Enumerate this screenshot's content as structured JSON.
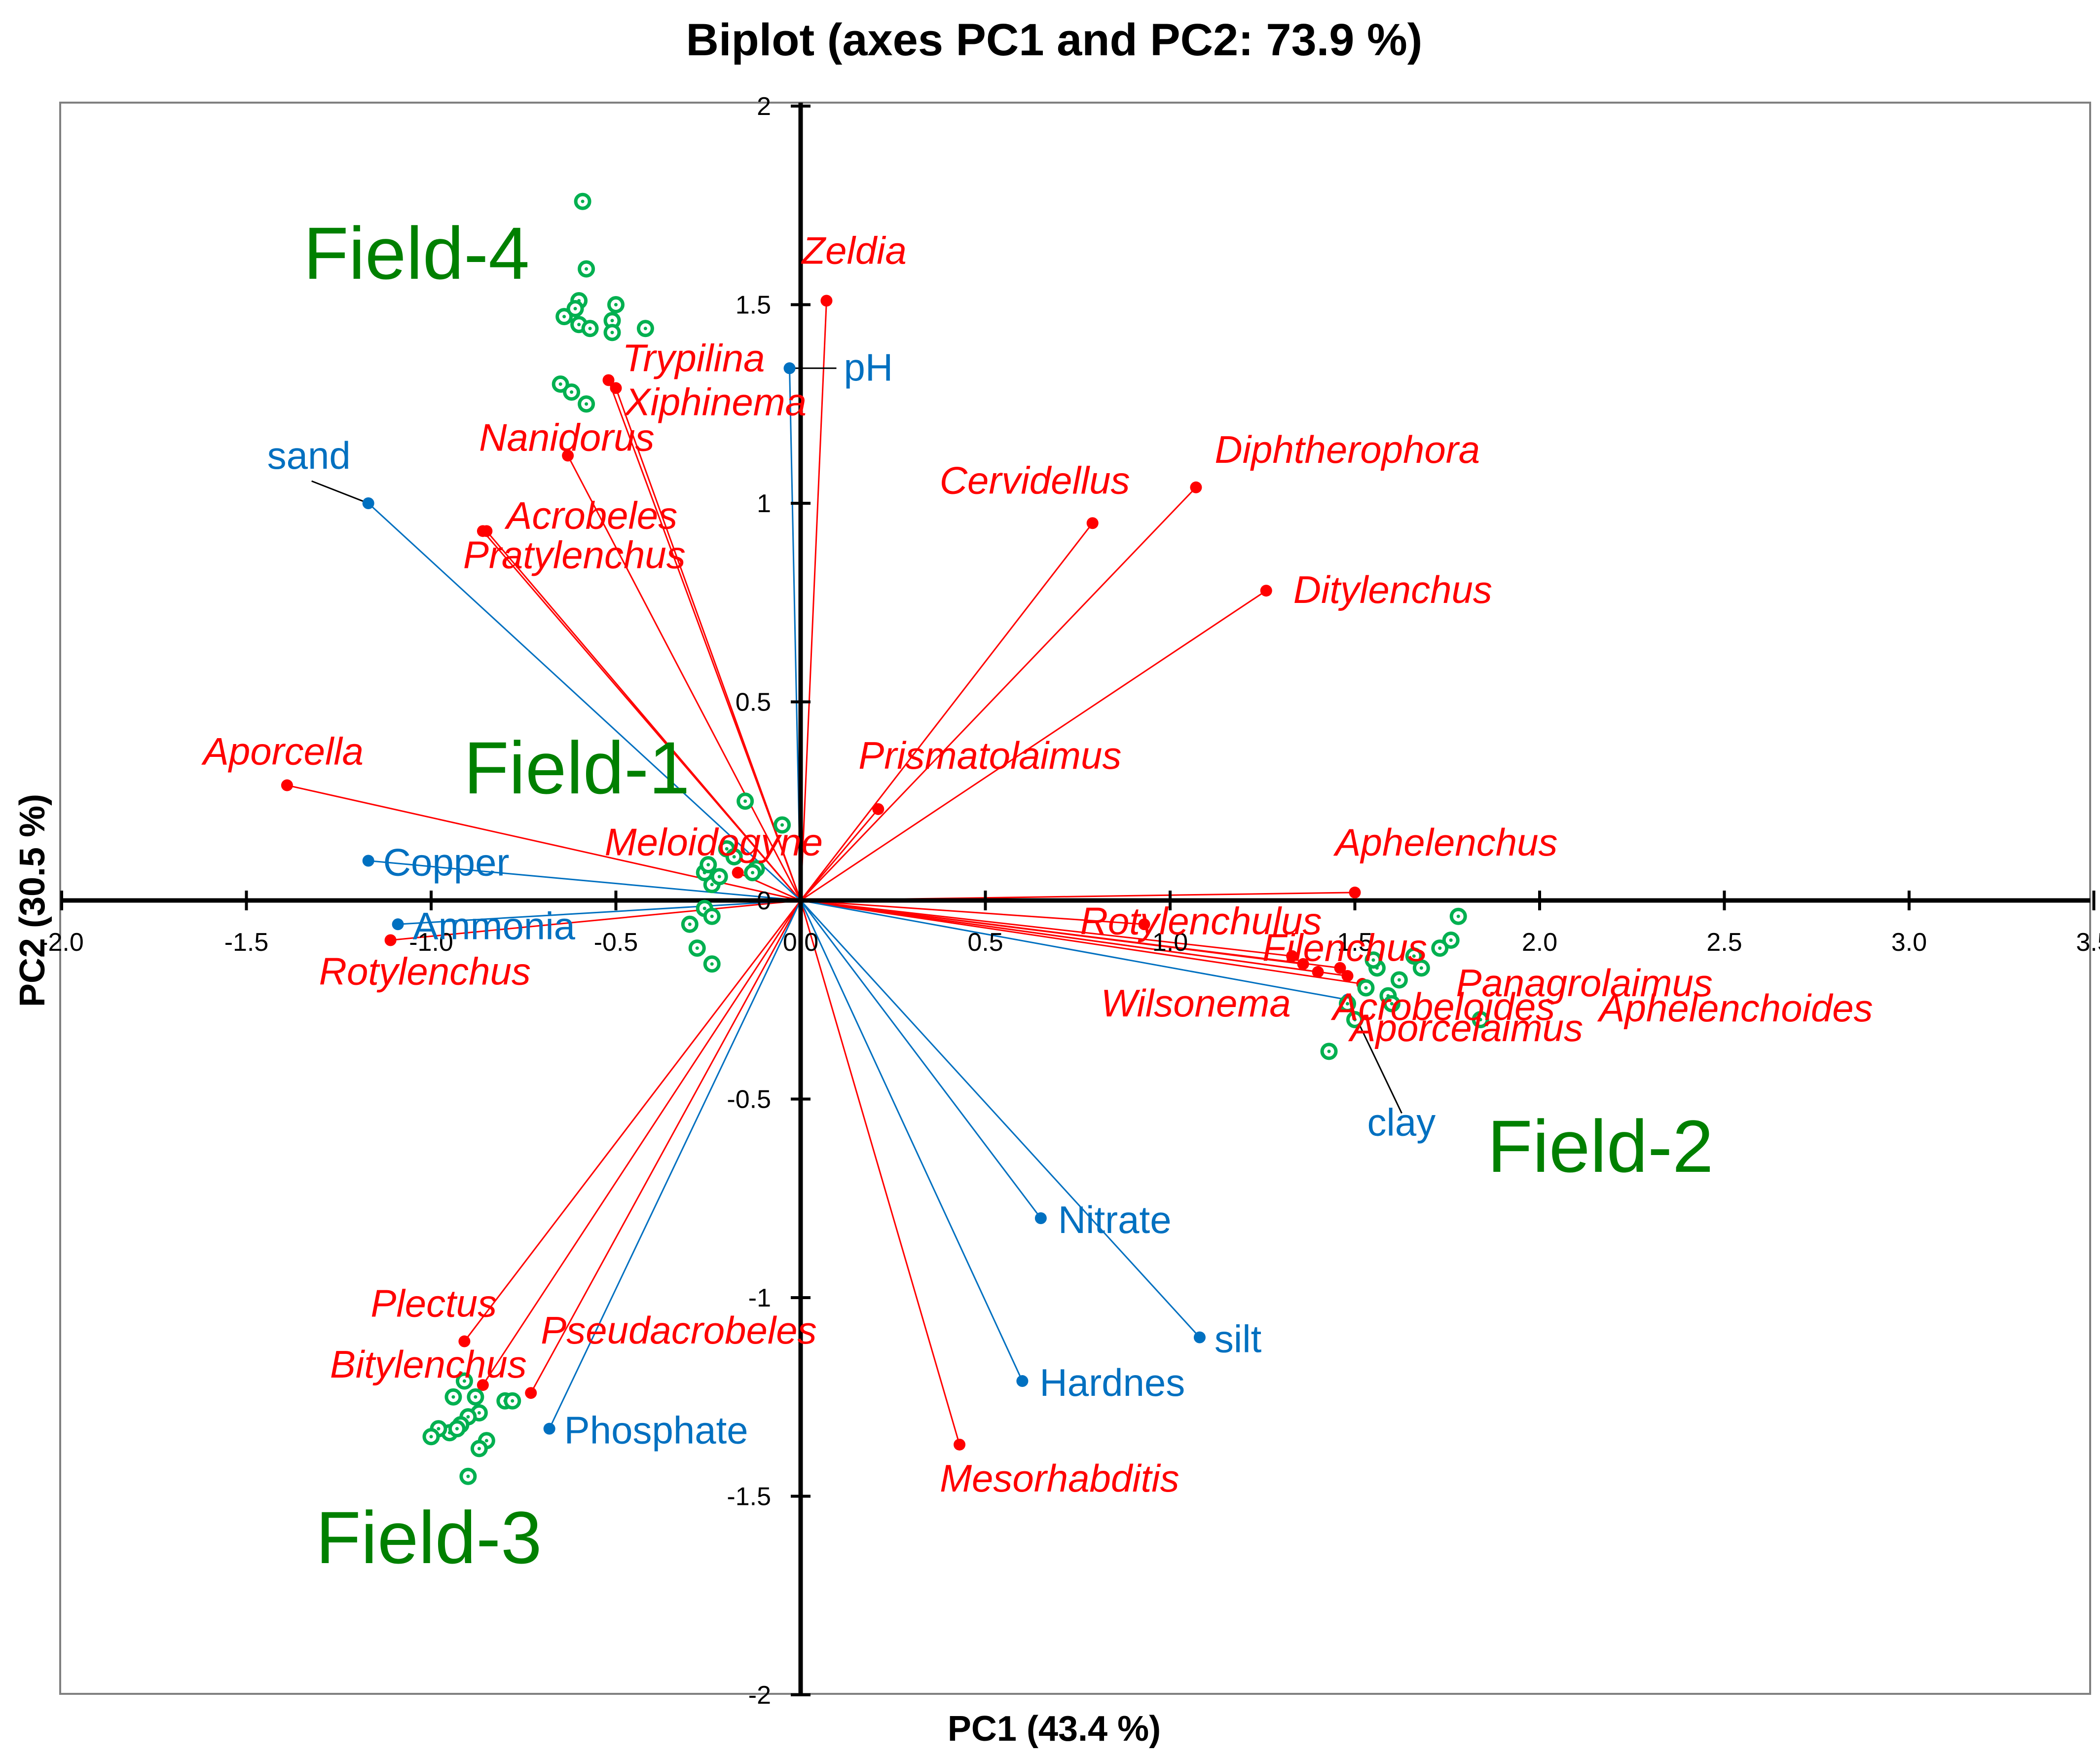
{
  "chart_data": {
    "type": "scatter",
    "title": "Biplot (axes PC1 and PC2: 73.9 %)",
    "xlabel": "PC1 (43.4 %)",
    "ylabel": "PC2 (30.5 %)",
    "xlim": [
      -2.0,
      3.5
    ],
    "ylim": [
      -2.0,
      2.0
    ],
    "x_ticks": [
      "-2.0",
      "-1.5",
      "-1.0",
      "-0.5",
      "0.0",
      "0.5",
      "1.0",
      "1.5",
      "2.0",
      "2.5",
      "3.0",
      "3.5"
    ],
    "y_ticks": [
      "-2",
      "-1.5",
      "-1",
      "-0.5",
      "0",
      "0.5",
      "1",
      "1.5",
      "2"
    ],
    "grid": false,
    "colors": {
      "species": "#ff0000",
      "environment": "#0070c0",
      "sites": "#00b050",
      "field": "#008000"
    },
    "species_vectors": [
      {
        "name": "Zeldia",
        "x": 0.07,
        "y": 1.51
      },
      {
        "name": "Trypilina",
        "x": -0.52,
        "y": 1.31
      },
      {
        "name": "Xiphinema",
        "x": -0.5,
        "y": 1.29
      },
      {
        "name": "Nanidorus",
        "x": -0.63,
        "y": 1.12
      },
      {
        "name": "Acrobeles",
        "x": -0.85,
        "y": 0.93
      },
      {
        "name": "Pratylenchus",
        "x": -0.86,
        "y": 0.93
      },
      {
        "name": "Cervidellus",
        "x": 0.79,
        "y": 0.95
      },
      {
        "name": "Diphtherophora",
        "x": 1.07,
        "y": 1.04
      },
      {
        "name": "Ditylenchus",
        "x": 1.26,
        "y": 0.78
      },
      {
        "name": "Prismatolaimus",
        "x": 0.21,
        "y": 0.23
      },
      {
        "name": "Aporcella",
        "x": -1.39,
        "y": 0.29
      },
      {
        "name": "Meloidogyne",
        "x": -0.17,
        "y": 0.07
      },
      {
        "name": "Aphelenchus",
        "x": 1.5,
        "y": 0.02
      },
      {
        "name": "Rotylenchulus",
        "x": 0.93,
        "y": -0.06
      },
      {
        "name": "Filenchus",
        "x": 1.33,
        "y": -0.14
      },
      {
        "name": "Panagrolaimus",
        "x": 1.46,
        "y": -0.17
      },
      {
        "name": "Acrobeloides",
        "x": 1.52,
        "y": -0.21
      },
      {
        "name": "Aphelenchoides",
        "x": 1.48,
        "y": -0.19
      },
      {
        "name": "Wilsonema",
        "x": 1.36,
        "y": -0.16
      },
      {
        "name": "Aporcelaimus",
        "x": 1.4,
        "y": -0.18
      },
      {
        "name": "Rotylenchus",
        "x": -1.11,
        "y": -0.1
      },
      {
        "name": "Plectus",
        "x": -0.91,
        "y": -1.11
      },
      {
        "name": "Bitylenchus",
        "x": -0.86,
        "y": -1.22
      },
      {
        "name": "Pseudacrobeles",
        "x": -0.73,
        "y": -1.24
      },
      {
        "name": "Mesorhabditis",
        "x": 0.43,
        "y": -1.37
      }
    ],
    "environment_vectors": [
      {
        "name": "pH",
        "x": -0.03,
        "y": 1.34
      },
      {
        "name": "sand",
        "x": -1.17,
        "y": 1.0
      },
      {
        "name": "Copper",
        "x": -1.17,
        "y": 0.1
      },
      {
        "name": "Ammonia",
        "x": -1.09,
        "y": -0.06
      },
      {
        "name": "clay",
        "x": 1.48,
        "y": -0.25
      },
      {
        "name": "Nitrate",
        "x": 0.65,
        "y": -0.8
      },
      {
        "name": "silt",
        "x": 1.08,
        "y": -1.1
      },
      {
        "name": "Hardnes",
        "x": 0.6,
        "y": -1.21
      },
      {
        "name": "Phosphate",
        "x": -0.68,
        "y": -1.33
      }
    ],
    "site_groups": [
      {
        "name": "Field-1",
        "points": [
          [
            -0.15,
            0.25
          ],
          [
            -0.05,
            0.19
          ],
          [
            -0.2,
            0.13
          ],
          [
            -0.12,
            0.08
          ],
          [
            -0.26,
            0.07
          ],
          [
            -0.24,
            0.04
          ],
          [
            -0.25,
            0.09
          ],
          [
            -0.22,
            0.06
          ],
          [
            -0.26,
            -0.02
          ],
          [
            -0.24,
            -0.04
          ],
          [
            -0.28,
            -0.12
          ],
          [
            -0.3,
            -0.06
          ],
          [
            -0.24,
            -0.16
          ],
          [
            -0.18,
            0.11
          ],
          [
            -0.13,
            0.07
          ]
        ]
      },
      {
        "name": "Field-2",
        "points": [
          [
            1.78,
            -0.04
          ],
          [
            1.76,
            -0.1
          ],
          [
            1.73,
            -0.12
          ],
          [
            1.66,
            -0.14
          ],
          [
            1.62,
            -0.2
          ],
          [
            1.59,
            -0.24
          ],
          [
            1.56,
            -0.17
          ],
          [
            1.53,
            -0.22
          ],
          [
            1.48,
            -0.26
          ],
          [
            1.5,
            -0.3
          ],
          [
            1.43,
            -0.38
          ],
          [
            1.84,
            -0.3
          ],
          [
            1.6,
            -0.26
          ],
          [
            1.68,
            -0.17
          ],
          [
            1.55,
            -0.15
          ]
        ]
      },
      {
        "name": "Field-3",
        "points": [
          [
            -0.91,
            -1.21
          ],
          [
            -0.94,
            -1.25
          ],
          [
            -0.88,
            -1.25
          ],
          [
            -0.87,
            -1.29
          ],
          [
            -0.9,
            -1.3
          ],
          [
            -0.92,
            -1.32
          ],
          [
            -0.95,
            -1.34
          ],
          [
            -0.98,
            -1.33
          ],
          [
            -1.0,
            -1.35
          ],
          [
            -0.85,
            -1.36
          ],
          [
            -0.87,
            -1.38
          ],
          [
            -0.8,
            -1.26
          ],
          [
            -0.78,
            -1.26
          ],
          [
            -0.9,
            -1.45
          ],
          [
            -0.93,
            -1.33
          ]
        ]
      },
      {
        "name": "Field-4",
        "points": [
          [
            -0.59,
            1.76
          ],
          [
            -0.58,
            1.59
          ],
          [
            -0.6,
            1.51
          ],
          [
            -0.64,
            1.47
          ],
          [
            -0.6,
            1.45
          ],
          [
            -0.57,
            1.44
          ],
          [
            -0.5,
            1.5
          ],
          [
            -0.51,
            1.46
          ],
          [
            -0.51,
            1.43
          ],
          [
            -0.42,
            1.44
          ],
          [
            -0.65,
            1.3
          ],
          [
            -0.62,
            1.28
          ],
          [
            -0.58,
            1.25
          ],
          [
            -0.61,
            1.49
          ]
        ]
      }
    ]
  }
}
